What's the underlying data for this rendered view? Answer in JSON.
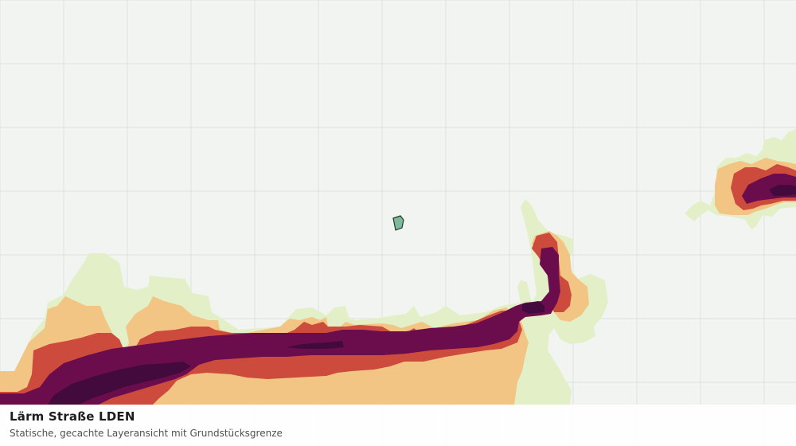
{
  "map": {
    "background_color": "#f2f4f2",
    "grid_color": "#dfe2df",
    "noise_classes": [
      {
        "level": 1,
        "color": "#e3efc6"
      },
      {
        "level": 2,
        "color": "#f2c585"
      },
      {
        "level": 3,
        "color": "#cc4b3d"
      },
      {
        "level": 4,
        "color": "#6b0d4d"
      },
      {
        "level": 5,
        "color": "#420a3d"
      }
    ],
    "parcel": {
      "fill": "#7fb99a",
      "stroke": "#1d3a2c"
    }
  },
  "caption": {
    "title": "Lärm Straße LDEN",
    "subtitle": "Statische, gecachte Layeransicht mit Grundstücksgrenze"
  }
}
